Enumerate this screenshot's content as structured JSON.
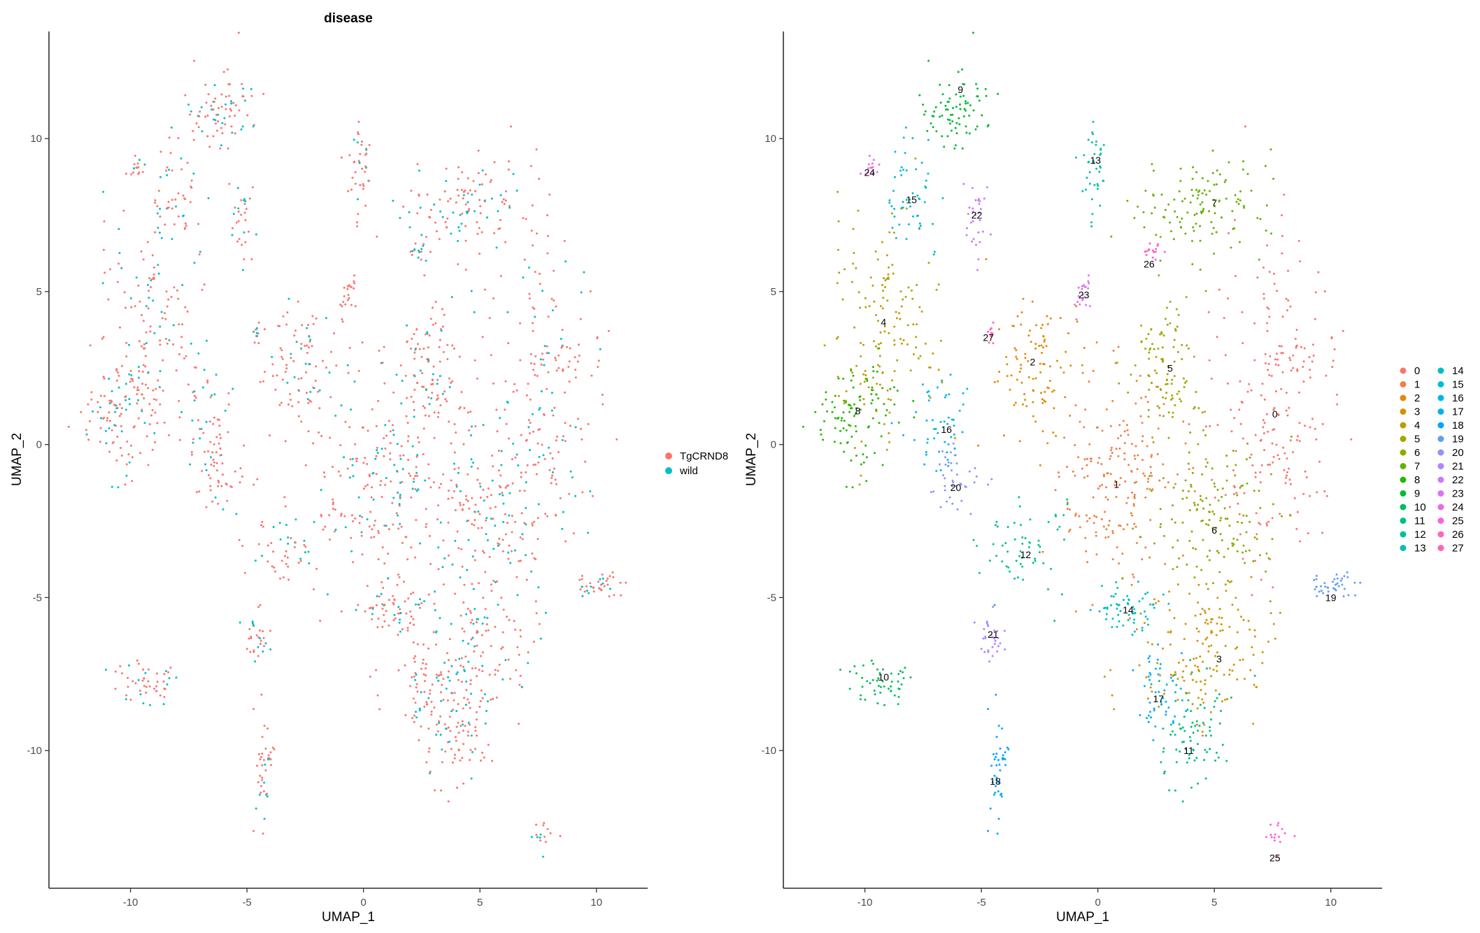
{
  "chart_data": [
    {
      "type": "scatter",
      "title": "disease",
      "xlabel": "UMAP_1",
      "ylabel": "UMAP_2",
      "xlim": [
        -13.5,
        12.2
      ],
      "ylim": [
        -14.5,
        13.5
      ],
      "xticks": [
        "-10",
        "-5",
        "0",
        "5",
        "10"
      ],
      "xtick_values": [
        -10,
        -5,
        0,
        5,
        10
      ],
      "yticks": [
        "10",
        "5",
        "0",
        "-5",
        "-10"
      ],
      "ytick_values": [
        10,
        5,
        0,
        -5,
        -10
      ],
      "grid": false,
      "legend_position": "right",
      "series": [
        {
          "name": "TgCRND8",
          "color": "#F8766D"
        },
        {
          "name": "wild",
          "color": "#00BFC4"
        }
      ],
      "clusters": [
        {
          "x": 7.6,
          "y": 1.3,
          "sx": 1.3,
          "sy": 2.8,
          "n": 220
        },
        {
          "x": 0.8,
          "y": -1.0,
          "sx": 1.4,
          "sy": 1.6,
          "n": 200
        },
        {
          "x": -2.8,
          "y": 2.5,
          "sx": 0.8,
          "sy": 1.3,
          "n": 100
        },
        {
          "x": 4.8,
          "y": -6.8,
          "sx": 1.6,
          "sy": 1.2,
          "n": 160
        },
        {
          "x": -9.0,
          "y": 4.0,
          "sx": 1.1,
          "sy": 1.8,
          "n": 150
        },
        {
          "x": 2.8,
          "y": 2.6,
          "sx": 0.7,
          "sy": 1.5,
          "n": 100
        },
        {
          "x": 5.0,
          "y": -2.5,
          "sx": 1.4,
          "sy": 1.3,
          "n": 150
        },
        {
          "x": 4.8,
          "y": 7.9,
          "sx": 1.5,
          "sy": 0.8,
          "n": 120
        },
        {
          "x": -10.3,
          "y": 1.1,
          "sx": 0.9,
          "sy": 1.0,
          "n": 100
        },
        {
          "x": -6.1,
          "y": 10.8,
          "sx": 0.8,
          "sy": 0.6,
          "n": 80
        },
        {
          "x": -9.3,
          "y": -7.8,
          "sx": 0.7,
          "sy": 0.3,
          "n": 50
        },
        {
          "x": 4.1,
          "y": -9.4,
          "sx": 0.8,
          "sy": 1.0,
          "n": 80
        },
        {
          "x": -3.1,
          "y": -3.5,
          "sx": 1.0,
          "sy": 0.8,
          "n": 60
        },
        {
          "x": -0.1,
          "y": 9.0,
          "sx": 0.25,
          "sy": 0.8,
          "n": 40
        },
        {
          "x": 1.3,
          "y": -5.3,
          "sx": 0.7,
          "sy": 0.5,
          "n": 60
        },
        {
          "x": -8.0,
          "y": 8.2,
          "sx": 0.6,
          "sy": 1.0,
          "n": 50
        },
        {
          "x": -6.8,
          "y": 0.6,
          "sx": 0.6,
          "sy": 0.8,
          "n": 50
        },
        {
          "x": 2.6,
          "y": -8.2,
          "sx": 0.5,
          "sy": 0.9,
          "n": 50
        },
        {
          "x": -4.3,
          "y": -10.5,
          "sx": 0.2,
          "sy": 0.9,
          "n": 40
        },
        {
          "x": 10.1,
          "y": -4.6,
          "sx": 0.6,
          "sy": 0.2,
          "n": 40
        },
        {
          "x": -6.1,
          "y": -1.1,
          "sx": 0.5,
          "sy": 0.6,
          "n": 40
        },
        {
          "x": -4.5,
          "y": -6.3,
          "sx": 0.4,
          "sy": 0.4,
          "n": 30
        },
        {
          "x": -5.3,
          "y": 7.3,
          "sx": 0.3,
          "sy": 0.7,
          "n": 30
        },
        {
          "x": -0.6,
          "y": 4.8,
          "sx": 0.2,
          "sy": 0.4,
          "n": 20
        },
        {
          "x": -9.6,
          "y": 9.1,
          "sx": 0.2,
          "sy": 0.2,
          "n": 15
        },
        {
          "x": 7.6,
          "y": -12.8,
          "sx": 0.3,
          "sy": 0.3,
          "n": 15
        },
        {
          "x": 2.3,
          "y": 6.3,
          "sx": 0.3,
          "sy": 0.15,
          "n": 15
        },
        {
          "x": -4.6,
          "y": 3.6,
          "sx": 0.1,
          "sy": 0.3,
          "n": 10
        }
      ]
    },
    {
      "type": "scatter",
      "title": "",
      "xlabel": "UMAP_1",
      "ylabel": "UMAP_2",
      "xlim": [
        -13.5,
        12.2
      ],
      "ylim": [
        -14.5,
        13.5
      ],
      "xticks": [
        "-10",
        "-5",
        "0",
        "5",
        "10"
      ],
      "xtick_values": [
        -10,
        -5,
        0,
        5,
        10
      ],
      "yticks": [
        "10",
        "5",
        "0",
        "-5",
        "-10"
      ],
      "ytick_values": [
        10,
        5,
        0,
        -5,
        -10
      ],
      "grid": false,
      "legend_position": "right",
      "series": [
        {
          "name": "0",
          "color": "#F8766D"
        },
        {
          "name": "1",
          "color": "#EE8043"
        },
        {
          "name": "2",
          "color": "#E08B00"
        },
        {
          "name": "3",
          "color": "#D09400"
        },
        {
          "name": "4",
          "color": "#BC9D00"
        },
        {
          "name": "5",
          "color": "#A5A500"
        },
        {
          "name": "6",
          "color": "#8AAB00"
        },
        {
          "name": "7",
          "color": "#66B100"
        },
        {
          "name": "8",
          "color": "#2AB600"
        },
        {
          "name": "9",
          "color": "#00BA38"
        },
        {
          "name": "10",
          "color": "#00BD5C"
        },
        {
          "name": "11",
          "color": "#00BF7B"
        },
        {
          "name": "12",
          "color": "#00C097"
        },
        {
          "name": "13",
          "color": "#00C0AF"
        },
        {
          "name": "14",
          "color": "#00BEC6"
        },
        {
          "name": "15",
          "color": "#00BBDA"
        },
        {
          "name": "16",
          "color": "#00B6EB"
        },
        {
          "name": "17",
          "color": "#00AFF8"
        },
        {
          "name": "18",
          "color": "#00A5FF"
        },
        {
          "name": "19",
          "color": "#619CFF"
        },
        {
          "name": "20",
          "color": "#8F91FF"
        },
        {
          "name": "21",
          "color": "#B085FF"
        },
        {
          "name": "22",
          "color": "#C97BFD"
        },
        {
          "name": "23",
          "color": "#DE71F4"
        },
        {
          "name": "24",
          "color": "#EC69E8"
        },
        {
          "name": "25",
          "color": "#F863DA"
        },
        {
          "name": "26",
          "color": "#FF61C7"
        },
        {
          "name": "27",
          "color": "#FF63B4"
        }
      ],
      "annotations": [
        {
          "text": "0",
          "x": 7.6,
          "y": 1.0
        },
        {
          "text": "1",
          "x": 0.8,
          "y": -1.3
        },
        {
          "text": "2",
          "x": -2.8,
          "y": 2.7
        },
        {
          "text": "3",
          "x": 5.2,
          "y": -7.0
        },
        {
          "text": "4",
          "x": -9.2,
          "y": 4.0
        },
        {
          "text": "5",
          "x": 3.1,
          "y": 2.5
        },
        {
          "text": "6",
          "x": 5.0,
          "y": -2.8
        },
        {
          "text": "7",
          "x": 5.0,
          "y": 7.9
        },
        {
          "text": "8",
          "x": -10.3,
          "y": 1.1
        },
        {
          "text": "9",
          "x": -5.9,
          "y": 11.6
        },
        {
          "text": "10",
          "x": -9.2,
          "y": -7.6
        },
        {
          "text": "11",
          "x": 3.9,
          "y": -10.0
        },
        {
          "text": "12",
          "x": -3.1,
          "y": -3.6
        },
        {
          "text": "13",
          "x": -0.1,
          "y": 9.3
        },
        {
          "text": "14",
          "x": 1.3,
          "y": -5.4
        },
        {
          "text": "15",
          "x": -8.0,
          "y": 8.0
        },
        {
          "text": "16",
          "x": -6.5,
          "y": 0.5
        },
        {
          "text": "17",
          "x": 2.6,
          "y": -8.3
        },
        {
          "text": "18",
          "x": -4.4,
          "y": -11.0
        },
        {
          "text": "19",
          "x": 10.0,
          "y": -5.0
        },
        {
          "text": "20",
          "x": -6.1,
          "y": -1.4
        },
        {
          "text": "21",
          "x": -4.5,
          "y": -6.2
        },
        {
          "text": "22",
          "x": -5.2,
          "y": 7.5
        },
        {
          "text": "23",
          "x": -0.6,
          "y": 4.9
        },
        {
          "text": "24",
          "x": -9.8,
          "y": 8.9
        },
        {
          "text": "25",
          "x": 7.6,
          "y": -13.5
        },
        {
          "text": "26",
          "x": 2.2,
          "y": 5.9
        },
        {
          "text": "27",
          "x": -4.7,
          "y": 3.5
        }
      ]
    }
  ]
}
